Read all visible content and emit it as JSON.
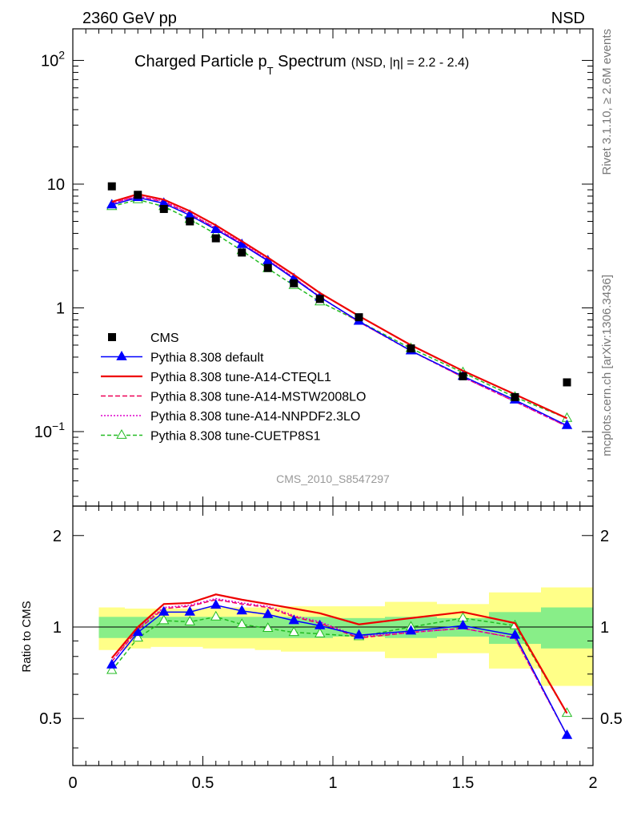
{
  "header": {
    "left": "2360 GeV pp",
    "right": "NSD"
  },
  "title": {
    "main_prefix": "Charged Particle p",
    "main_sub": "T",
    "main_suffix": " Spectrum",
    "detail": "(NSD, |η| = 2.2 - 2.4)"
  },
  "side_text": {
    "rivet": "Rivet 3.1.10, ≥ 2.6M events",
    "mcplots": "mcplots.cern.ch [arXiv:1306.3436]"
  },
  "analysis_id": "CMS_2010_S8547297",
  "ratio_ylabel": "Ratio to CMS",
  "colors": {
    "data": "#000000",
    "default": "#0000ff",
    "cteql1": "#ee0000",
    "mstw": "#ee0055",
    "nnpdf": "#dd00cc",
    "cuetp8s1": "#22bb22",
    "band_outer": "#ffff88",
    "band_inner": "#88ee88"
  },
  "chart_data": [
    {
      "type": "line",
      "yscale": "log",
      "xlim": [
        0,
        2
      ],
      "ylim": [
        0.025,
        180
      ],
      "y_ticks": [
        {
          "value": 0.1,
          "base": "10",
          "exp": "−1"
        },
        {
          "value": 1,
          "base": "1",
          "exp": ""
        },
        {
          "value": 10,
          "base": "10",
          "exp": ""
        },
        {
          "value": 100,
          "base": "10",
          "exp": "2"
        }
      ],
      "legend_position": "bottom-left",
      "x": [
        0.15,
        0.25,
        0.35,
        0.45,
        0.55,
        0.65,
        0.75,
        0.85,
        0.95,
        1.1,
        1.3,
        1.5,
        1.7,
        1.9
      ],
      "data": {
        "name": "CMS",
        "values": [
          9.6,
          8.2,
          6.3,
          5.0,
          3.65,
          2.8,
          2.1,
          1.58,
          1.18,
          0.84,
          0.47,
          0.28,
          0.19,
          0.25
        ]
      },
      "series": [
        {
          "name": "Pythia 8.308 default",
          "key": "default",
          "marker": "filled-triangle",
          "dash": "",
          "values": [
            6.8,
            7.8,
            7.0,
            5.6,
            4.3,
            3.25,
            2.4,
            1.72,
            1.22,
            0.78,
            0.45,
            0.28,
            0.18,
            0.112
          ]
        },
        {
          "name": "Pythia 8.308 tune-A14-CTEQL1",
          "key": "cteql1",
          "marker": "none",
          "dash": "",
          "values": [
            7.2,
            8.3,
            7.5,
            6.05,
            4.65,
            3.45,
            2.55,
            1.85,
            1.32,
            0.86,
            0.5,
            0.31,
            0.2,
            0.128
          ]
        },
        {
          "name": "Pythia 8.308 tune-A14-MSTW2008LO",
          "key": "mstw",
          "marker": "none",
          "dash": "6,3",
          "values": [
            7.0,
            8.0,
            7.2,
            5.75,
            4.4,
            3.3,
            2.42,
            1.75,
            1.23,
            0.77,
            0.45,
            0.275,
            0.175,
            0.11
          ]
        },
        {
          "name": "Pythia 8.308 tune-A14-NNPDF2.3LO",
          "key": "nnpdf",
          "marker": "none",
          "dash": "2,2",
          "values": [
            7.0,
            8.0,
            7.3,
            5.8,
            4.45,
            3.35,
            2.45,
            1.76,
            1.23,
            0.77,
            0.45,
            0.275,
            0.175,
            0.11
          ]
        },
        {
          "name": "Pythia 8.308 tune-CUETP8S1",
          "key": "cuetp8s1",
          "marker": "open-triangle",
          "dash": "5,3",
          "values": [
            6.6,
            7.5,
            6.6,
            5.2,
            3.95,
            2.9,
            2.08,
            1.52,
            1.12,
            0.78,
            0.47,
            0.3,
            0.19,
            0.128
          ]
        }
      ]
    },
    {
      "type": "line",
      "ylabel": "Ratio to CMS",
      "xlim": [
        0,
        2
      ],
      "ylim": [
        0.35,
        2.5
      ],
      "x_ticks": [
        0,
        0.5,
        1,
        1.5,
        2
      ],
      "x_tick_labels": [
        "0",
        "0.5",
        "1",
        "1.5",
        "2"
      ],
      "y_ticks": [
        0.5,
        1,
        2
      ],
      "y_tick_labels": [
        "0.5",
        "1",
        "2"
      ],
      "reference_line": 1,
      "bands": {
        "bins": [
          [
            0.1,
            0.2
          ],
          [
            0.2,
            0.3
          ],
          [
            0.3,
            0.4
          ],
          [
            0.4,
            0.5
          ],
          [
            0.5,
            0.6
          ],
          [
            0.6,
            0.7
          ],
          [
            0.7,
            0.8
          ],
          [
            0.8,
            0.9
          ],
          [
            0.9,
            1.0
          ],
          [
            1.0,
            1.2
          ],
          [
            1.2,
            1.4
          ],
          [
            1.4,
            1.6
          ],
          [
            1.6,
            1.8
          ],
          [
            1.8,
            2.0
          ]
        ],
        "outer_low": [
          0.84,
          0.85,
          0.86,
          0.86,
          0.85,
          0.85,
          0.84,
          0.83,
          0.83,
          0.83,
          0.79,
          0.82,
          0.73,
          0.64
        ],
        "outer_high": [
          1.16,
          1.15,
          1.15,
          1.15,
          1.16,
          1.16,
          1.16,
          1.17,
          1.17,
          1.17,
          1.21,
          1.19,
          1.3,
          1.35
        ],
        "inner_low": [
          0.92,
          0.92,
          0.92,
          0.92,
          0.92,
          0.92,
          0.92,
          0.92,
          0.92,
          0.93,
          0.92,
          0.93,
          0.88,
          0.85
        ],
        "inner_high": [
          1.08,
          1.08,
          1.08,
          1.08,
          1.08,
          1.08,
          1.08,
          1.08,
          1.08,
          1.07,
          1.08,
          1.07,
          1.12,
          1.16
        ]
      },
      "x": [
        0.15,
        0.25,
        0.35,
        0.45,
        0.55,
        0.65,
        0.75,
        0.85,
        0.95,
        1.1,
        1.3,
        1.5,
        1.7,
        1.9
      ],
      "series": [
        {
          "key": "default",
          "marker": "filled-triangle",
          "dash": "",
          "values": [
            0.75,
            0.96,
            1.12,
            1.12,
            1.18,
            1.13,
            1.1,
            1.05,
            1.01,
            0.94,
            0.97,
            1.01,
            0.94,
            0.44
          ]
        },
        {
          "key": "cteql1",
          "marker": "none",
          "dash": "",
          "values": [
            0.79,
            1.0,
            1.19,
            1.2,
            1.28,
            1.23,
            1.19,
            1.15,
            1.11,
            1.02,
            1.07,
            1.12,
            1.03,
            0.52
          ]
        },
        {
          "key": "mstw",
          "marker": "none",
          "dash": "6,3",
          "values": [
            0.77,
            0.98,
            1.15,
            1.17,
            1.23,
            1.19,
            1.16,
            1.08,
            1.03,
            0.92,
            0.96,
            0.99,
            0.92,
            0.44
          ]
        },
        {
          "key": "nnpdf",
          "marker": "none",
          "dash": "2,2",
          "values": [
            0.77,
            0.99,
            1.16,
            1.18,
            1.24,
            1.2,
            1.17,
            1.09,
            1.04,
            0.93,
            0.96,
            0.99,
            0.92,
            0.44
          ]
        },
        {
          "key": "cuetp8s1",
          "marker": "open-triangle",
          "dash": "5,3",
          "values": [
            0.72,
            0.92,
            1.05,
            1.04,
            1.08,
            1.02,
            0.99,
            0.96,
            0.95,
            0.93,
            1.0,
            1.07,
            1.01,
            0.52
          ]
        }
      ]
    }
  ]
}
